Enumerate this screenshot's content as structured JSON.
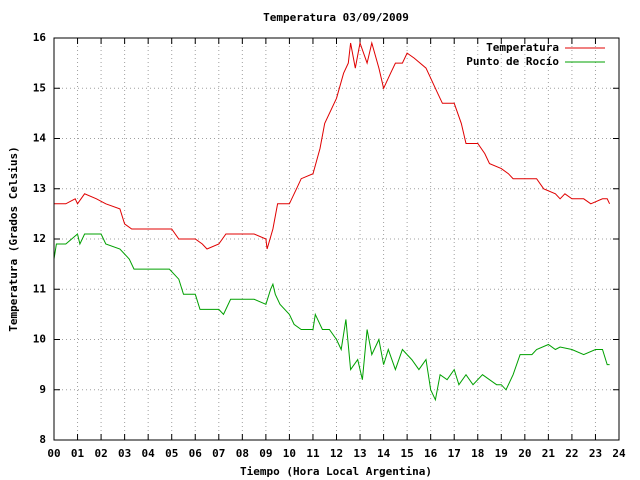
{
  "chart_data": {
    "type": "line",
    "title": "Temperatura 03/09/2009",
    "xlabel": "Tiempo (Hora Local Argentina)",
    "ylabel": "Temperatura (Grados Celsius)",
    "xlim": [
      0,
      24
    ],
    "ylim": [
      8,
      16
    ],
    "xticks": [
      {
        "value": 0,
        "label": "00"
      },
      {
        "value": 1,
        "label": "01"
      },
      {
        "value": 2,
        "label": "02"
      },
      {
        "value": 3,
        "label": "03"
      },
      {
        "value": 4,
        "label": "04"
      },
      {
        "value": 5,
        "label": "05"
      },
      {
        "value": 6,
        "label": "06"
      },
      {
        "value": 7,
        "label": "07"
      },
      {
        "value": 8,
        "label": "08"
      },
      {
        "value": 9,
        "label": "09"
      },
      10,
      11,
      12,
      13,
      14,
      15,
      16,
      17,
      18,
      19,
      20,
      21,
      22,
      23,
      24
    ],
    "yticks": [
      8,
      9,
      10,
      11,
      12,
      13,
      14,
      15,
      16
    ],
    "grid": true,
    "legend": "top-right",
    "series": [
      {
        "name": "Temperatura",
        "color": "#e00000",
        "x": [
          0,
          0.5,
          0.9,
          1.0,
          1.3,
          1.8,
          2.2,
          2.8,
          3.0,
          3.3,
          4.0,
          5.0,
          5.3,
          6.0,
          6.3,
          6.5,
          7.0,
          7.3,
          8.0,
          8.5,
          9.0,
          9.05,
          9.3,
          9.5,
          10.0,
          10.3,
          10.5,
          11.0,
          11.3,
          11.5,
          12.0,
          12.3,
          12.5,
          12.6,
          12.8,
          13.0,
          13.3,
          13.5,
          13.8,
          14.0,
          14.3,
          14.5,
          14.8,
          15.0,
          15.3,
          15.8,
          16.0,
          16.3,
          16.5,
          17.0,
          17.3,
          17.5,
          18.0,
          18.3,
          18.5,
          19.0,
          19.3,
          19.5,
          20.0,
          20.5,
          20.8,
          21.3,
          21.5,
          21.7,
          22.0,
          22.5,
          22.8,
          23.3,
          23.5,
          23.6
        ],
        "values": [
          12.7,
          12.7,
          12.8,
          12.7,
          12.9,
          12.8,
          12.7,
          12.6,
          12.3,
          12.2,
          12.2,
          12.2,
          12.0,
          12.0,
          11.9,
          11.8,
          11.9,
          12.1,
          12.1,
          12.1,
          12.0,
          11.8,
          12.2,
          12.7,
          12.7,
          13.0,
          13.2,
          13.3,
          13.8,
          14.3,
          14.8,
          15.3,
          15.5,
          15.9,
          15.4,
          15.9,
          15.5,
          15.9,
          15.4,
          15.0,
          15.3,
          15.5,
          15.5,
          15.7,
          15.6,
          15.4,
          15.2,
          14.9,
          14.7,
          14.7,
          14.3,
          13.9,
          13.9,
          13.7,
          13.5,
          13.4,
          13.3,
          13.2,
          13.2,
          13.2,
          13.0,
          12.9,
          12.8,
          12.9,
          12.8,
          12.8,
          12.7,
          12.8,
          12.8,
          12.7
        ]
      },
      {
        "name": "Punto de Rocío",
        "color": "#00a000",
        "x": [
          0,
          0.1,
          0.5,
          1.0,
          1.1,
          1.3,
          2.0,
          2.2,
          2.8,
          3.2,
          3.4,
          4.0,
          4.9,
          5.3,
          5.5,
          6.0,
          6.2,
          7.0,
          7.2,
          7.5,
          8.0,
          8.5,
          9.0,
          9.2,
          9.3,
          9.4,
          9.6,
          10.0,
          10.2,
          10.5,
          11.0,
          11.1,
          11.4,
          11.7,
          12.0,
          12.2,
          12.4,
          12.6,
          12.9,
          13.1,
          13.3,
          13.5,
          13.8,
          14.0,
          14.2,
          14.5,
          14.8,
          15.0,
          15.2,
          15.5,
          15.8,
          16.0,
          16.2,
          16.4,
          16.7,
          17.0,
          17.2,
          17.5,
          17.8,
          18.2,
          18.5,
          18.8,
          19.0,
          19.2,
          19.5,
          19.8,
          20.3,
          20.5,
          21.0,
          21.3,
          21.5,
          22.0,
          22.5,
          23.0,
          23.3,
          23.5,
          23.6
        ],
        "values": [
          11.6,
          11.9,
          11.9,
          12.1,
          11.9,
          12.1,
          12.1,
          11.9,
          11.8,
          11.6,
          11.4,
          11.4,
          11.4,
          11.2,
          10.9,
          10.9,
          10.6,
          10.6,
          10.5,
          10.8,
          10.8,
          10.8,
          10.7,
          11.0,
          11.1,
          10.9,
          10.7,
          10.5,
          10.3,
          10.2,
          10.2,
          10.5,
          10.2,
          10.2,
          10.0,
          9.8,
          10.4,
          9.4,
          9.6,
          9.2,
          10.2,
          9.7,
          10.0,
          9.5,
          9.8,
          9.4,
          9.8,
          9.7,
          9.6,
          9.4,
          9.6,
          9.0,
          8.8,
          9.3,
          9.2,
          9.4,
          9.1,
          9.3,
          9.1,
          9.3,
          9.2,
          9.1,
          9.1,
          9.0,
          9.3,
          9.7,
          9.7,
          9.8,
          9.9,
          9.8,
          9.85,
          9.8,
          9.7,
          9.8,
          9.8,
          9.5,
          9.5
        ]
      }
    ]
  }
}
